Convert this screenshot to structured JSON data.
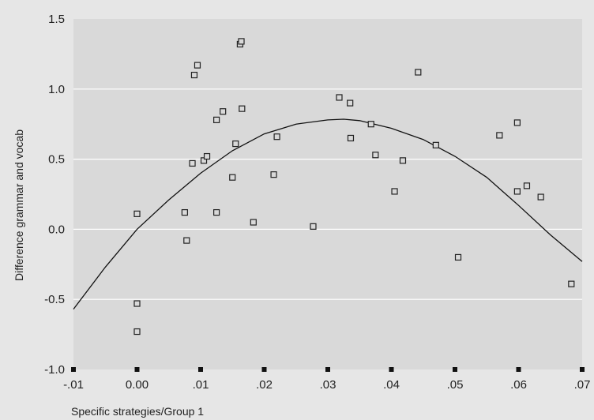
{
  "chart_data": {
    "type": "scatter",
    "title": "",
    "xlabel": "Specific strategies/Group 1",
    "ylabel": "Difference grammar and vocab",
    "xlim": [
      -0.01,
      0.07
    ],
    "ylim": [
      -1.0,
      1.5
    ],
    "x_ticks": [
      -0.01,
      0.0,
      0.01,
      0.02,
      0.03,
      0.04,
      0.05,
      0.06,
      0.07
    ],
    "x_tick_labels": [
      "-.01",
      "0.00",
      ".01",
      ".02",
      ".03",
      ".04",
      ".05",
      ".06",
      ".07"
    ],
    "y_ticks": [
      -1.0,
      -0.5,
      0.0,
      0.5,
      1.0,
      1.5
    ],
    "y_tick_labels": [
      "-1.0",
      "-0.5",
      "0.0",
      "0.5",
      "1.0",
      "1.5"
    ],
    "grid": "horizontal",
    "colors": {
      "background": "#e6e6e6",
      "plot_area": "#d9d9d9",
      "grid": "#ffffff",
      "marker": "#222222",
      "line": "#111111"
    },
    "series": [
      {
        "kind": "points",
        "marker": "open-square",
        "points": [
          [
            0.0,
            0.11
          ],
          [
            0.0,
            -0.53
          ],
          [
            0.0,
            -0.73
          ],
          [
            0.0075,
            0.12
          ],
          [
            0.0078,
            -0.08
          ],
          [
            0.0087,
            0.47
          ],
          [
            0.009,
            1.1
          ],
          [
            0.0095,
            1.17
          ],
          [
            0.0105,
            0.49
          ],
          [
            0.011,
            0.52
          ],
          [
            0.0125,
            0.78
          ],
          [
            0.0125,
            0.12
          ],
          [
            0.0135,
            0.84
          ],
          [
            0.015,
            0.37
          ],
          [
            0.0155,
            0.61
          ],
          [
            0.0162,
            1.32
          ],
          [
            0.0164,
            1.34
          ],
          [
            0.0165,
            0.86
          ],
          [
            0.0183,
            0.05
          ],
          [
            0.0215,
            0.39
          ],
          [
            0.022,
            0.66
          ],
          [
            0.0277,
            0.02
          ],
          [
            0.0318,
            0.94
          ],
          [
            0.0335,
            0.9
          ],
          [
            0.0336,
            0.65
          ],
          [
            0.0368,
            0.75
          ],
          [
            0.0375,
            0.53
          ],
          [
            0.0405,
            0.27
          ],
          [
            0.0418,
            0.49
          ],
          [
            0.0442,
            1.12
          ],
          [
            0.047,
            0.6
          ],
          [
            0.0505,
            -0.2
          ],
          [
            0.057,
            0.67
          ],
          [
            0.0598,
            0.76
          ],
          [
            0.0598,
            0.27
          ],
          [
            0.0613,
            0.31
          ],
          [
            0.0635,
            0.23
          ],
          [
            0.0683,
            -0.39
          ]
        ]
      },
      {
        "kind": "fit-curve",
        "curve": "quadratic",
        "points": [
          [
            -0.01,
            -0.57
          ],
          [
            -0.005,
            -0.27
          ],
          [
            0.0,
            0.0
          ],
          [
            0.005,
            0.21
          ],
          [
            0.01,
            0.4
          ],
          [
            0.015,
            0.56
          ],
          [
            0.02,
            0.68
          ],
          [
            0.025,
            0.75
          ],
          [
            0.03,
            0.78
          ],
          [
            0.0325,
            0.785
          ],
          [
            0.035,
            0.775
          ],
          [
            0.04,
            0.72
          ],
          [
            0.045,
            0.64
          ],
          [
            0.05,
            0.52
          ],
          [
            0.055,
            0.37
          ],
          [
            0.06,
            0.17
          ],
          [
            0.065,
            -0.04
          ],
          [
            0.07,
            -0.23
          ]
        ]
      }
    ]
  }
}
